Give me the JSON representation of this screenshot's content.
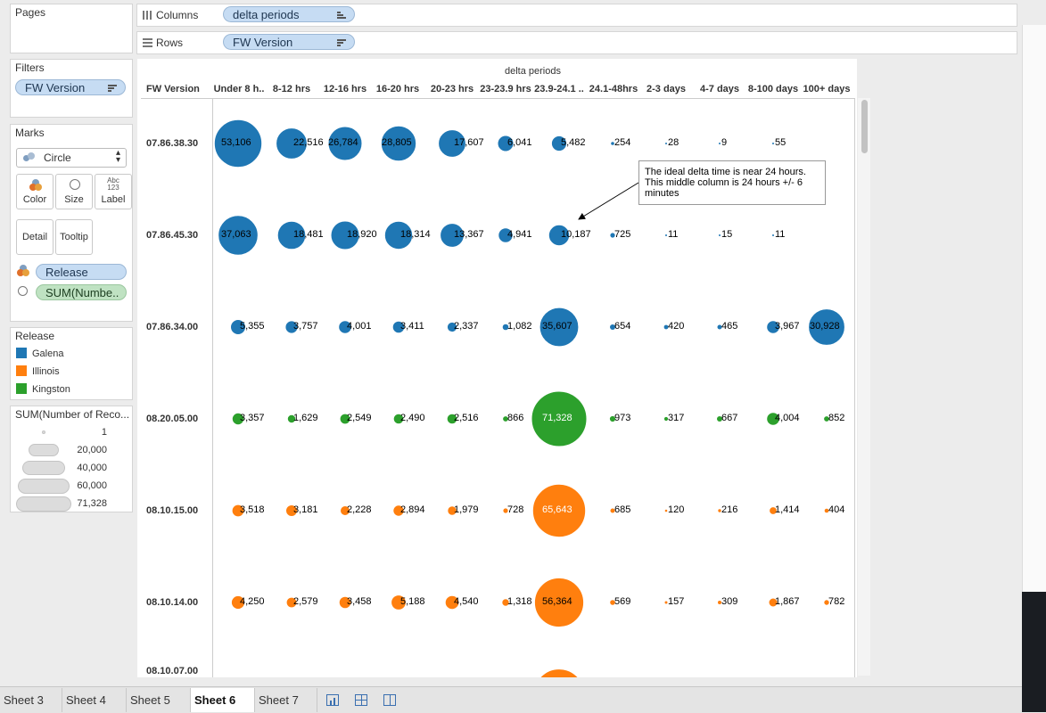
{
  "panels": {
    "pages": "Pages",
    "filters": "Filters",
    "filter_pill": "FW Version",
    "marks": "Marks",
    "mark_type": "Circle",
    "mark_buttons": {
      "color": "Color",
      "size": "Size",
      "label": "Label",
      "detail": "Detail",
      "tooltip": "Tooltip",
      "label_icon_text": "Abc\n123"
    },
    "mark_fields": {
      "color_field": "Release",
      "size_field": "SUM(Numbe.."
    }
  },
  "shelves": {
    "columns_label": "Columns",
    "columns_pill": "delta periods",
    "rows_label": "Rows",
    "rows_pill": "FW Version"
  },
  "release_legend": {
    "title": "Release",
    "items": [
      {
        "name": "Galena",
        "color": "#1f77b4"
      },
      {
        "name": "Illinois",
        "color": "#ff7f0e"
      },
      {
        "name": "Kingston",
        "color": "#2ca02c"
      }
    ]
  },
  "size_legend": {
    "title": "SUM(Number of Reco...",
    "items": [
      "1",
      "20,000",
      "40,000",
      "60,000",
      "71,328"
    ]
  },
  "view": {
    "title": "delta periods",
    "row_header_title": "FW Version",
    "annotation": "The ideal delta time is near 24 hours. This middle column is 24 hours +/- 6 minutes"
  },
  "chart_data": {
    "type": "scatter",
    "title": "delta periods",
    "categories": [
      "Under 8 h..",
      "8-12 hrs",
      "12-16 hrs",
      "16-20 hrs",
      "20-23 hrs",
      "23-23.9 hrs",
      "23.9-24.1 ..",
      "24.1-48hrs",
      "2-3 days",
      "4-7 days",
      "8-100 days",
      "100+ days"
    ],
    "rows": [
      {
        "name": "07.86.38.30",
        "release": "Galena",
        "values": [
          53106,
          22516,
          26784,
          28805,
          17607,
          6041,
          5482,
          254,
          28,
          9,
          55,
          null
        ]
      },
      {
        "name": "07.86.45.30",
        "release": "Galena",
        "values": [
          37063,
          18481,
          18920,
          18314,
          13367,
          4941,
          10187,
          725,
          11,
          15,
          11,
          null
        ]
      },
      {
        "name": "07.86.34.00",
        "release": "Galena",
        "values": [
          5355,
          3757,
          4001,
          3411,
          2337,
          1082,
          35607,
          654,
          420,
          465,
          3967,
          30928
        ]
      },
      {
        "name": "08.20.05.00",
        "release": "Kingston",
        "values": [
          3357,
          1629,
          2549,
          2490,
          2516,
          866,
          71328,
          973,
          317,
          667,
          4004,
          852
        ]
      },
      {
        "name": "08.10.15.00",
        "release": "Illinois",
        "values": [
          3518,
          3181,
          2228,
          2894,
          1979,
          728,
          65643,
          685,
          120,
          216,
          1414,
          404
        ]
      },
      {
        "name": "08.10.14.00",
        "release": "Illinois",
        "values": [
          4250,
          2579,
          3458,
          5188,
          4540,
          1318,
          56364,
          569,
          157,
          309,
          1867,
          782
        ]
      },
      {
        "name": "08.10.07.00",
        "release": "Illinois",
        "values": [
          null,
          null,
          null,
          null,
          null,
          null,
          60000,
          null,
          null,
          null,
          null,
          null
        ]
      }
    ],
    "size_max": 71328
  },
  "tabs": [
    "Sheet 3",
    "Sheet 4",
    "Sheet 5",
    "Sheet 6",
    "Sheet 7"
  ],
  "active_tab": "Sheet 6"
}
